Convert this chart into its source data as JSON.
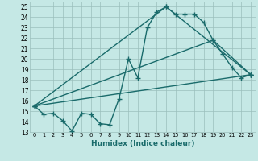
{
  "xlabel": "Humidex (Indice chaleur)",
  "xlim": [
    -0.5,
    23.5
  ],
  "ylim": [
    13,
    25.5
  ],
  "yticks": [
    13,
    14,
    15,
    16,
    17,
    18,
    19,
    20,
    21,
    22,
    23,
    24,
    25
  ],
  "xticks": [
    0,
    1,
    2,
    3,
    4,
    5,
    6,
    7,
    8,
    9,
    10,
    11,
    12,
    13,
    14,
    15,
    16,
    17,
    18,
    19,
    20,
    21,
    22,
    23
  ],
  "bg_color": "#c5e8e5",
  "grid_color": "#9bbfbc",
  "line_color": "#1a6b6b",
  "series1_x": [
    0,
    1,
    2,
    3,
    4,
    5,
    6,
    7,
    8,
    9,
    10,
    11,
    12,
    13,
    14,
    15,
    16,
    17,
    18,
    19,
    20,
    21,
    22,
    23
  ],
  "series1_y": [
    15.5,
    14.7,
    14.8,
    14.1,
    13.1,
    14.8,
    14.7,
    13.8,
    13.7,
    16.2,
    20.0,
    18.2,
    23.0,
    24.5,
    25.0,
    24.3,
    24.3,
    24.3,
    23.5,
    21.8,
    20.5,
    19.2,
    18.2,
    18.5
  ],
  "series2_x": [
    0,
    23
  ],
  "series2_y": [
    15.5,
    18.5
  ],
  "series3_x": [
    0,
    14,
    23
  ],
  "series3_y": [
    15.5,
    25.0,
    18.5
  ],
  "series4_x": [
    0,
    19,
    23
  ],
  "series4_y": [
    15.5,
    21.8,
    18.5
  ],
  "marker": "+",
  "markersize": 4,
  "linewidth": 1.0
}
